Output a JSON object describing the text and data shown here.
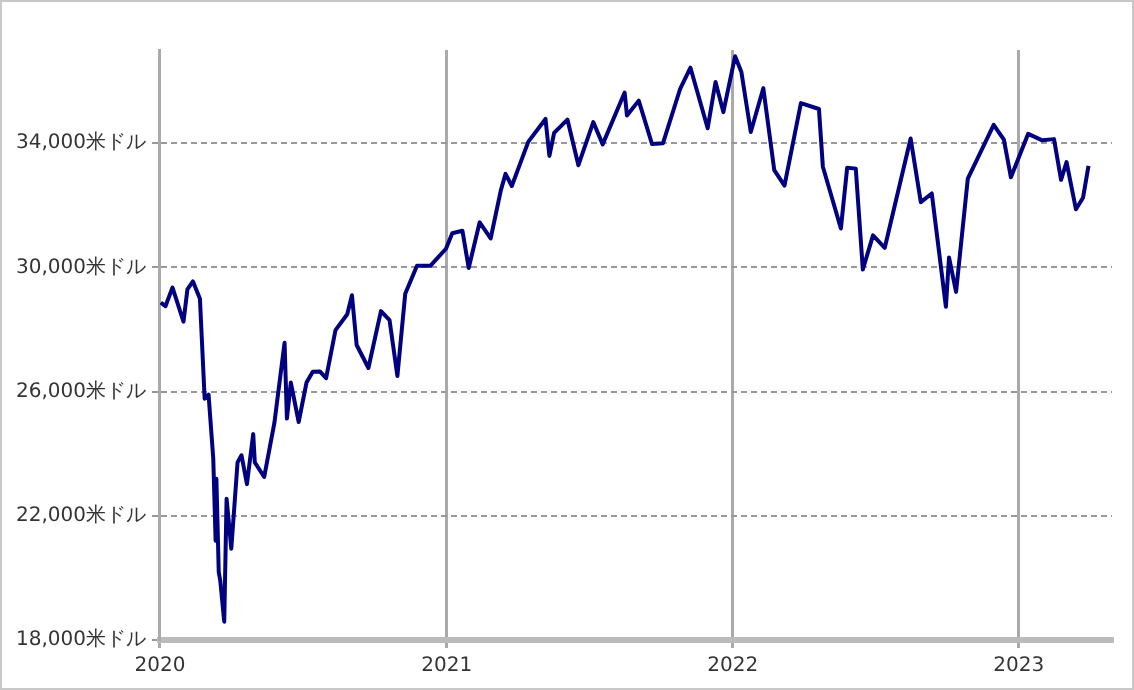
{
  "chart_data": {
    "type": "line",
    "x": [
      "2020-01-02",
      "2020-01-08",
      "2020-01-17",
      "2020-01-31",
      "2020-02-05",
      "2020-02-12",
      "2020-02-21",
      "2020-02-27",
      "2020-03-03",
      "2020-03-09",
      "2020-03-12",
      "2020-03-13",
      "2020-03-16",
      "2020-03-18",
      "2020-03-23",
      "2020-03-26",
      "2020-04-01",
      "2020-04-09",
      "2020-04-14",
      "2020-04-21",
      "2020-04-29",
      "2020-05-01",
      "2020-05-13",
      "2020-05-26",
      "2020-06-08",
      "2020-06-11",
      "2020-06-16",
      "2020-06-26",
      "2020-07-06",
      "2020-07-14",
      "2020-07-23",
      "2020-07-31",
      "2020-08-12",
      "2020-08-27",
      "2020-09-02",
      "2020-09-08",
      "2020-09-23",
      "2020-10-09",
      "2020-10-20",
      "2020-10-30",
      "2020-11-09",
      "2020-11-24",
      "2020-12-11",
      "2020-12-31",
      "2021-01-08",
      "2021-01-21",
      "2021-01-29",
      "2021-02-12",
      "2021-02-26",
      "2021-03-11",
      "2021-03-17",
      "2021-03-25",
      "2021-04-15",
      "2021-05-07",
      "2021-05-12",
      "2021-05-18",
      "2021-06-04",
      "2021-06-18",
      "2021-07-07",
      "2021-07-19",
      "2021-08-16",
      "2021-08-19",
      "2021-09-03",
      "2021-09-20",
      "2021-10-04",
      "2021-10-26",
      "2021-11-08",
      "2021-11-30",
      "2021-12-10",
      "2021-12-20",
      "2022-01-04",
      "2022-01-12",
      "2022-01-24",
      "2022-02-09",
      "2022-02-23",
      "2022-03-08",
      "2022-03-29",
      "2022-04-21",
      "2022-04-26",
      "2022-05-19",
      "2022-05-27",
      "2022-06-07",
      "2022-06-16",
      "2022-06-29",
      "2022-07-14",
      "2022-08-16",
      "2022-08-29",
      "2022-09-12",
      "2022-09-30",
      "2022-10-04",
      "2022-10-13",
      "2022-10-28",
      "2022-11-30",
      "2022-12-13",
      "2022-12-22",
      "2023-01-13",
      "2023-01-31",
      "2023-02-15",
      "2023-02-24",
      "2023-03-03",
      "2023-03-15",
      "2023-03-24",
      "2023-03-31"
    ],
    "series": [
      {
        "color": "#000080",
        "values": [
          28870,
          28750,
          29350,
          28250,
          29290,
          29550,
          28990,
          25770,
          25900,
          23850,
          21200,
          23190,
          20190,
          19900,
          18590,
          22550,
          20940,
          23720,
          23950,
          23020,
          24630,
          23720,
          23250,
          24990,
          27570,
          25130,
          26290,
          25020,
          26290,
          26640,
          26650,
          26430,
          27980,
          28490,
          29100,
          27500,
          26760,
          28590,
          28300,
          26500,
          29150,
          30050,
          30050,
          30600,
          31100,
          31180,
          29980,
          31450,
          30930,
          32480,
          33010,
          32620,
          34040,
          34780,
          33590,
          34330,
          34760,
          33290,
          34680,
          33960,
          35630,
          34890,
          35370,
          33970,
          34000,
          35760,
          36430,
          34480,
          35970,
          35000,
          36800,
          36290,
          34360,
          35770,
          33130,
          32630,
          35290,
          35100,
          33240,
          31250,
          33210,
          33180,
          29930,
          31030,
          30630,
          34150,
          32100,
          32380,
          28730,
          30320,
          29210,
          32860,
          34590,
          34110,
          32900,
          34300,
          34090,
          34130,
          32820,
          33390,
          31870,
          32240,
          33270
        ]
      }
    ],
    "xlim": [
      "2020-01-01",
      "2023-04-30"
    ],
    "xticks": [
      "2020",
      "2021",
      "2022",
      "2023"
    ],
    "ylim": [
      18000,
      37000
    ],
    "yticks": [
      {
        "value": 18000,
        "label": "18,000米ドル"
      },
      {
        "value": 22000,
        "label": "22,000米ドル"
      },
      {
        "value": 26000,
        "label": "26,000米ドル"
      },
      {
        "value": 30000,
        "label": "30,000米ドル"
      },
      {
        "value": 34000,
        "label": "34,000米ドル"
      }
    ],
    "grid": true,
    "marker": "none",
    "line_style": "solid",
    "legend": false
  }
}
